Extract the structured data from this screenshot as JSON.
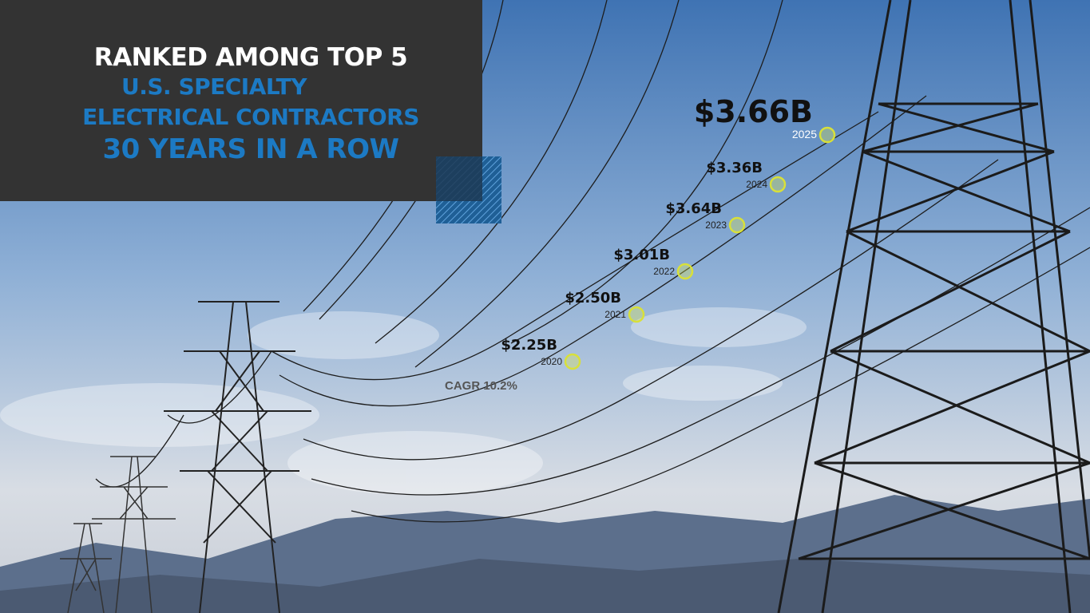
{
  "header": {
    "lines": [
      "RANKED AMONG TOP 5",
      "U.S. SPECIALTY",
      "ELECTRICAL CONTRACTORS",
      "30 YEARS IN A ROW"
    ]
  },
  "points": [
    {
      "value": "$2.25B",
      "year": "2020"
    },
    {
      "value": "$2.50B",
      "year": "2021"
    },
    {
      "value": "$3.01B",
      "year": "2022"
    },
    {
      "value": "$3.64B",
      "year": "2023"
    },
    {
      "value": "$3.36B",
      "year": "2024"
    },
    {
      "value": "$3.66B",
      "year": "2025"
    }
  ],
  "cagr": "CAGR 10.2%"
}
